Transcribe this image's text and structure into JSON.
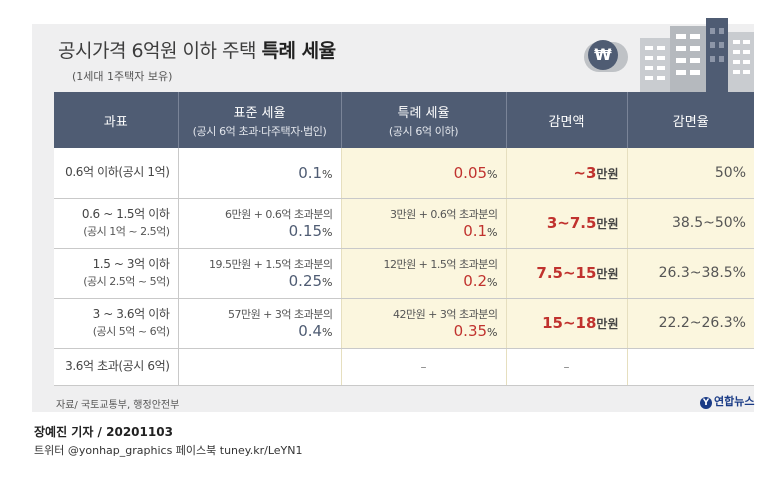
{
  "title": {
    "main_prefix": "공시가격 6억원 이하 주택 ",
    "main_bold": "특례 세율",
    "sub": "(1세대 1주택자 보유)"
  },
  "icon": {
    "coin_symbol": "₩",
    "coin": "won-coin-icon",
    "buildings": "apartment-buildings-icon"
  },
  "chart_data": {
    "type": "table",
    "columns": [
      {
        "label": "과표",
        "sub": ""
      },
      {
        "label": "표준 세율",
        "sub": "(공시 6억 초과·다주택자·법인)"
      },
      {
        "label": "특례 세율",
        "sub": "(공시 6억 이하)"
      },
      {
        "label": "감면액",
        "sub": ""
      },
      {
        "label": "감면율",
        "sub": ""
      }
    ],
    "rows": [
      {
        "bracket": "0.6억 이하(공시 1억)",
        "bracket_sub": "",
        "std_prefix": "",
        "std_rate": "0.1",
        "spec_prefix": "",
        "spec_rate": "0.05",
        "reduction": "~3",
        "reduction_unit": "만원",
        "rate": "50%"
      },
      {
        "bracket": "0.6 ~ 1.5억 이하",
        "bracket_sub": "(공시 1억 ~ 2.5억)",
        "std_prefix": "6만원 + 0.6억 초과분의",
        "std_rate": "0.15",
        "spec_prefix": "3만원 + 0.6억 초과분의",
        "spec_rate": "0.1",
        "reduction": "3~7.5",
        "reduction_unit": "만원",
        "rate": "38.5~50%"
      },
      {
        "bracket": "1.5 ~ 3억 이하",
        "bracket_sub": "(공시 2.5억 ~ 5억)",
        "std_prefix": "19.5만원 + 1.5억 초과분의",
        "std_rate": "0.25",
        "spec_prefix": "12만원 + 1.5억 초과분의",
        "spec_rate": "0.2",
        "reduction": "7.5~15",
        "reduction_unit": "만원",
        "rate": "26.3~38.5%"
      },
      {
        "bracket": "3 ~ 3.6억 이하",
        "bracket_sub": "(공시 5억 ~ 6억)",
        "std_prefix": "57만원 + 3억 초과분의",
        "std_rate": "0.4",
        "spec_prefix": "42만원 + 3억 초과분의",
        "spec_rate": "0.35",
        "reduction": "15~18",
        "reduction_unit": "만원",
        "rate": "22.2~26.3%"
      },
      {
        "bracket": "3.6억 초과(공시 6억)",
        "bracket_sub": "",
        "std_prefix": "",
        "std_rate": "",
        "spec_prefix": "",
        "spec_rate": "",
        "reduction": "",
        "reduction_unit": "",
        "rate": ""
      }
    ],
    "percent_unit": "%",
    "dash": "–"
  },
  "footer": {
    "source": "자료/ 국토교통부, 행정안전부",
    "logo": "연합뉴스",
    "logo_mark": "Y",
    "credit": "장예진 기자 / 20201103",
    "social": "트위터 @yonhap_graphics  페이스북 tuney.kr/LeYN1"
  },
  "colors": {
    "header": "#4f5c73",
    "highlight": "#fbf6de",
    "accent_red": "#c0322e",
    "panel": "#efeff0"
  }
}
